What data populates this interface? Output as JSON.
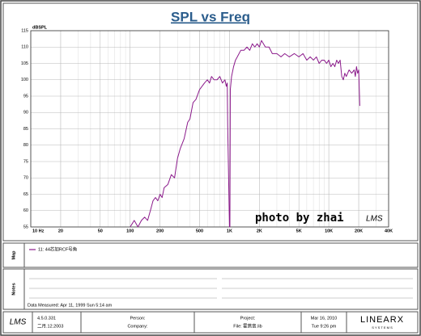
{
  "chart_data": {
    "type": "line",
    "title": "SPL vs Freq",
    "y_label": "dBSPL",
    "xscale": "log",
    "xlim": [
      10,
      40000
    ],
    "ylim": [
      55,
      115
    ],
    "xticks": [
      {
        "value": 10,
        "label": "10  Hz"
      },
      20,
      50,
      100,
      200,
      500,
      {
        "value": 1000,
        "label": "1K"
      },
      {
        "value": 2000,
        "label": "2K"
      },
      {
        "value": 5000,
        "label": "5K"
      },
      {
        "value": 10000,
        "label": "10K"
      },
      {
        "value": 20000,
        "label": "20K"
      },
      {
        "value": 40000,
        "label": "40K"
      }
    ],
    "yticks": [
      55,
      60,
      65,
      70,
      75,
      80,
      85,
      90,
      95,
      100,
      105,
      110,
      115
    ],
    "grid": true,
    "minor_grid": true,
    "series": [
      {
        "name": "11: 44芯加RCF号角",
        "color": "#8b1a8b",
        "x": [
          100,
          105,
          110,
          115,
          120,
          130,
          140,
          150,
          160,
          170,
          180,
          190,
          200,
          210,
          220,
          240,
          260,
          280,
          300,
          320,
          350,
          380,
          400,
          430,
          460,
          500,
          530,
          560,
          600,
          630,
          660,
          700,
          750,
          800,
          850,
          900,
          930,
          950,
          960,
          1000,
          1010,
          1020,
          1050,
          1100,
          1150,
          1200,
          1300,
          1400,
          1500,
          1600,
          1700,
          1800,
          1900,
          2000,
          2100,
          2200,
          2300,
          2500,
          2700,
          3000,
          3300,
          3600,
          4000,
          4500,
          5000,
          5500,
          6000,
          6500,
          7000,
          7500,
          8000,
          8500,
          9000,
          9500,
          10000,
          10500,
          11000,
          11500,
          12000,
          12500,
          13000,
          13500,
          14000,
          14500,
          15000,
          16000,
          17000,
          18000,
          18500,
          19000,
          19500,
          20000,
          20500
        ],
        "values": [
          55,
          56,
          57,
          56,
          55,
          57,
          58,
          57,
          60,
          63,
          64,
          63,
          65,
          64,
          67,
          68,
          71,
          70,
          76,
          79,
          82,
          87,
          88,
          93,
          94,
          97,
          98,
          99,
          100,
          99,
          101,
          100,
          100,
          101,
          99,
          100,
          98,
          99,
          86,
          55,
          55,
          97,
          101,
          104,
          106,
          107,
          109,
          109,
          110,
          109,
          111,
          110,
          111,
          110,
          112,
          111,
          110,
          110,
          108,
          108,
          107,
          108,
          107,
          108,
          107,
          108,
          106,
          107,
          106,
          107,
          105,
          106,
          106,
          105,
          106,
          104,
          105,
          104,
          106,
          105,
          106,
          101,
          100,
          102,
          101,
          103,
          102,
          103,
          101,
          104,
          102,
          103,
          92
        ]
      }
    ]
  },
  "watermark": {
    "text": "photo by zhai",
    "logo": "LMS"
  },
  "map": {
    "label": "Map"
  },
  "notes": {
    "label": "Notes",
    "measured": "Data Measured: Apr 11, 1999  Sun  5:14 am"
  },
  "footer": {
    "logo": "LMS",
    "version": "4.5.0.331",
    "build_date": "二月.12.2003",
    "person": "Person:",
    "company": "Company:",
    "project": "Project:",
    "file": "File: 霍燕音.lib",
    "date": "Mar 16, 2010",
    "time": "Tue  9:26 pm",
    "brand": "LINEARX",
    "brand_sub": "S Y S T E M S"
  }
}
